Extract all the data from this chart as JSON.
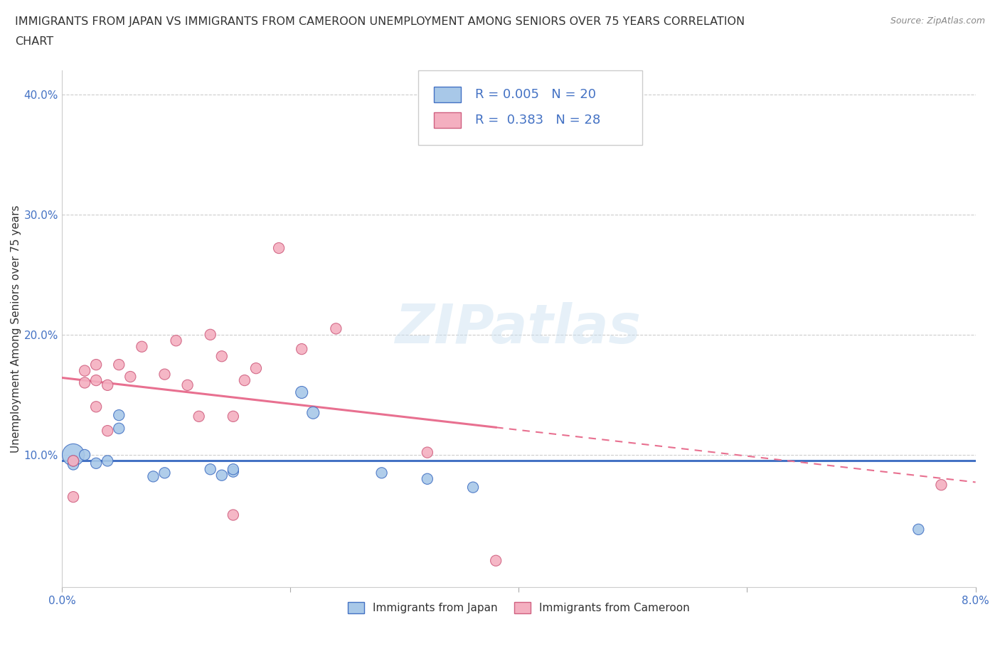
{
  "title_line1": "IMMIGRANTS FROM JAPAN VS IMMIGRANTS FROM CAMEROON UNEMPLOYMENT AMONG SENIORS OVER 75 YEARS CORRELATION",
  "title_line2": "CHART",
  "source": "Source: ZipAtlas.com",
  "ylabel": "Unemployment Among Seniors over 75 years",
  "r_japan": 0.005,
  "n_japan": 20,
  "r_cameroon": 0.383,
  "n_cameroon": 28,
  "color_japan": "#a8c8e8",
  "color_cameroon": "#f4afc0",
  "trendline_japan_color": "#4472c4",
  "trendline_cameroon_color": "#e87090",
  "watermark": "ZIPatlas",
  "japan_x": [
    0.001,
    0.001,
    0.001,
    0.002,
    0.003,
    0.004,
    0.005,
    0.005,
    0.008,
    0.009,
    0.013,
    0.014,
    0.015,
    0.015,
    0.021,
    0.022,
    0.028,
    0.032,
    0.036,
    0.075
  ],
  "japan_y": [
    0.1,
    0.092,
    0.095,
    0.1,
    0.093,
    0.095,
    0.133,
    0.122,
    0.082,
    0.085,
    0.088,
    0.083,
    0.086,
    0.088,
    0.152,
    0.135,
    0.085,
    0.08,
    0.073,
    0.038
  ],
  "japan_sizes": [
    500,
    120,
    120,
    120,
    120,
    120,
    120,
    120,
    120,
    120,
    120,
    120,
    120,
    120,
    150,
    150,
    120,
    120,
    120,
    120
  ],
  "cameroon_x": [
    0.001,
    0.001,
    0.002,
    0.002,
    0.003,
    0.003,
    0.003,
    0.004,
    0.004,
    0.005,
    0.006,
    0.007,
    0.009,
    0.01,
    0.011,
    0.012,
    0.013,
    0.014,
    0.015,
    0.016,
    0.017,
    0.019,
    0.021,
    0.024,
    0.032,
    0.038,
    0.077,
    0.015
  ],
  "cameroon_y": [
    0.065,
    0.095,
    0.16,
    0.17,
    0.14,
    0.162,
    0.175,
    0.158,
    0.12,
    0.175,
    0.165,
    0.19,
    0.167,
    0.195,
    0.158,
    0.132,
    0.2,
    0.182,
    0.132,
    0.162,
    0.172,
    0.272,
    0.188,
    0.205,
    0.102,
    0.012,
    0.075,
    0.05
  ],
  "cameroon_sizes": [
    120,
    120,
    120,
    120,
    120,
    120,
    120,
    120,
    120,
    120,
    120,
    120,
    120,
    120,
    120,
    120,
    120,
    120,
    120,
    120,
    120,
    120,
    120,
    120,
    120,
    120,
    120,
    120
  ],
  "xmin": 0.0,
  "xmax": 0.08,
  "ymin": -0.01,
  "ymax": 0.42,
  "ytick_vals": [
    0.1,
    0.2,
    0.3,
    0.4
  ],
  "ytick_labels": [
    "10.0%",
    "20.0%",
    "30.0%",
    "40.0%"
  ]
}
